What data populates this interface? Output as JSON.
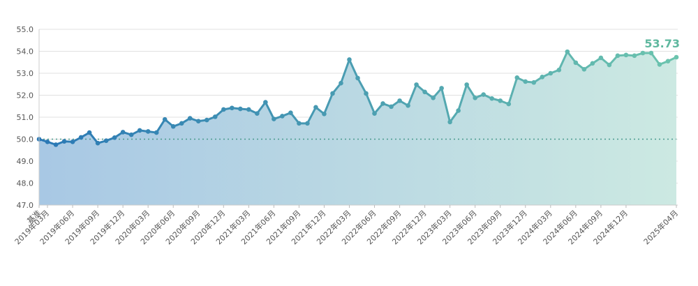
{
  "chart_data": {
    "type": "area",
    "title": "",
    "xlabel": "",
    "ylabel": "",
    "ylim": [
      47.0,
      55.0
    ],
    "y_ticks": [
      "47.0",
      "48.0",
      "49.0",
      "50.0",
      "51.0",
      "52.0",
      "53.0",
      "54.0",
      "55.0"
    ],
    "baseline": 50.0,
    "grid": true,
    "x_tick_labels": [
      "基准",
      "2019年03月",
      "2019年06月",
      "2019年09月",
      "2019年12月",
      "2020年03月",
      "2020年06月",
      "2020年09月",
      "2020年12月",
      "2021年03月",
      "2021年06月",
      "2021年09月",
      "2021年12月",
      "2022年03月",
      "2022年06月",
      "2022年09月",
      "2022年12月",
      "2023年03月",
      "2023年06月",
      "2023年09月",
      "2023年12月",
      "2024年03月",
      "2024年06月",
      "2024年09月",
      "2024年12月",
      "2025年04月"
    ],
    "end_label": "53.73",
    "colors": {
      "start": "#2a78b5",
      "end": "#6cc4ae",
      "baseline": "#4a9a8e",
      "grid": "#e0e0e0",
      "end_label": "#5fb89f"
    },
    "series": [
      {
        "values": [
          50.0,
          49.88,
          49.75,
          49.9,
          49.88,
          50.08,
          50.3,
          49.82,
          49.93,
          50.07,
          50.32,
          50.2,
          50.4,
          50.35,
          50.3,
          50.9,
          50.58,
          50.72,
          50.95,
          50.82,
          50.87,
          51.02,
          51.35,
          51.42,
          51.38,
          51.35,
          51.17,
          51.68,
          50.92,
          51.05,
          51.2,
          50.72,
          50.72,
          51.45,
          51.15,
          52.08,
          52.55,
          53.62,
          52.78,
          52.08,
          51.17,
          51.62,
          51.48,
          51.75,
          51.53,
          52.48,
          52.15,
          51.88,
          52.32,
          50.78,
          51.3,
          52.48,
          51.88,
          52.03,
          51.85,
          51.75,
          51.6,
          52.8,
          52.62,
          52.58,
          52.83,
          53.0,
          53.15,
          53.98,
          53.48,
          53.18,
          53.45,
          53.7,
          53.38,
          53.8,
          53.83,
          53.8,
          53.92,
          53.92,
          53.4,
          53.55,
          53.73
        ]
      }
    ]
  }
}
